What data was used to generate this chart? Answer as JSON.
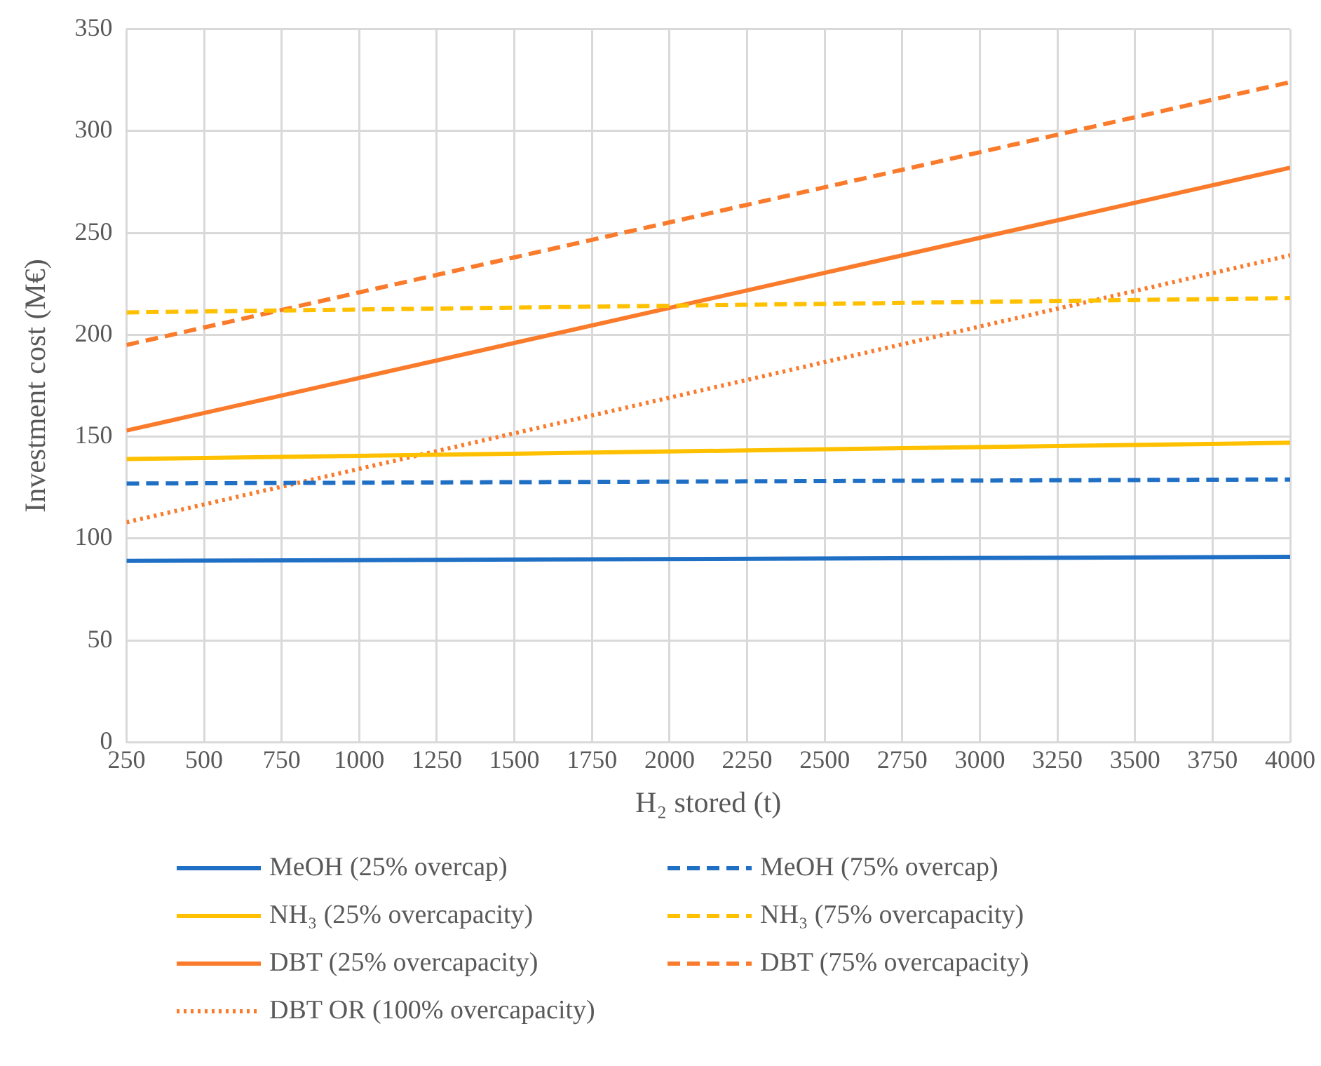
{
  "chart_data": {
    "type": "line",
    "xlabel": "H₂ stored (t)",
    "ylabel": "Investment cost (M€)",
    "x": [
      250,
      4000
    ],
    "xlim": [
      250,
      4000
    ],
    "xticks": [
      250,
      500,
      750,
      1000,
      1250,
      1500,
      1750,
      2000,
      2250,
      2500,
      2750,
      3000,
      3250,
      3500,
      3750,
      4000
    ],
    "ylim": [
      0,
      350
    ],
    "yticks": [
      0,
      50,
      100,
      150,
      200,
      250,
      300,
      350
    ],
    "grid": true,
    "legend": "bottom",
    "marker": "none",
    "series": [
      {
        "name": "MeOH (25% overcap)",
        "color": "#1f6fc5",
        "line_style": "solid",
        "values": [
          89,
          91
        ]
      },
      {
        "name": "MeOH (75% overcap)",
        "color": "#1f6fc5",
        "line_style": "dashed",
        "values": [
          127,
          129
        ]
      },
      {
        "name": "NH₃ (25% overcapacity)",
        "color": "#ffc000",
        "line_style": "solid",
        "values": [
          139,
          147
        ]
      },
      {
        "name": "NH₃ (75% overcapacity)",
        "color": "#ffc000",
        "line_style": "dashed",
        "values": [
          211,
          218
        ]
      },
      {
        "name": "DBT (25% overcapacity)",
        "color": "#f97b2b",
        "line_style": "solid",
        "values": [
          153,
          282
        ]
      },
      {
        "name": "DBT (75% overcapacity)",
        "color": "#f97b2b",
        "line_style": "dashed",
        "values": [
          195,
          324
        ]
      },
      {
        "name": "DBT OR (100% overcapacity)",
        "color": "#f97b2b",
        "line_style": "dotted",
        "values": [
          108,
          239
        ]
      }
    ]
  }
}
